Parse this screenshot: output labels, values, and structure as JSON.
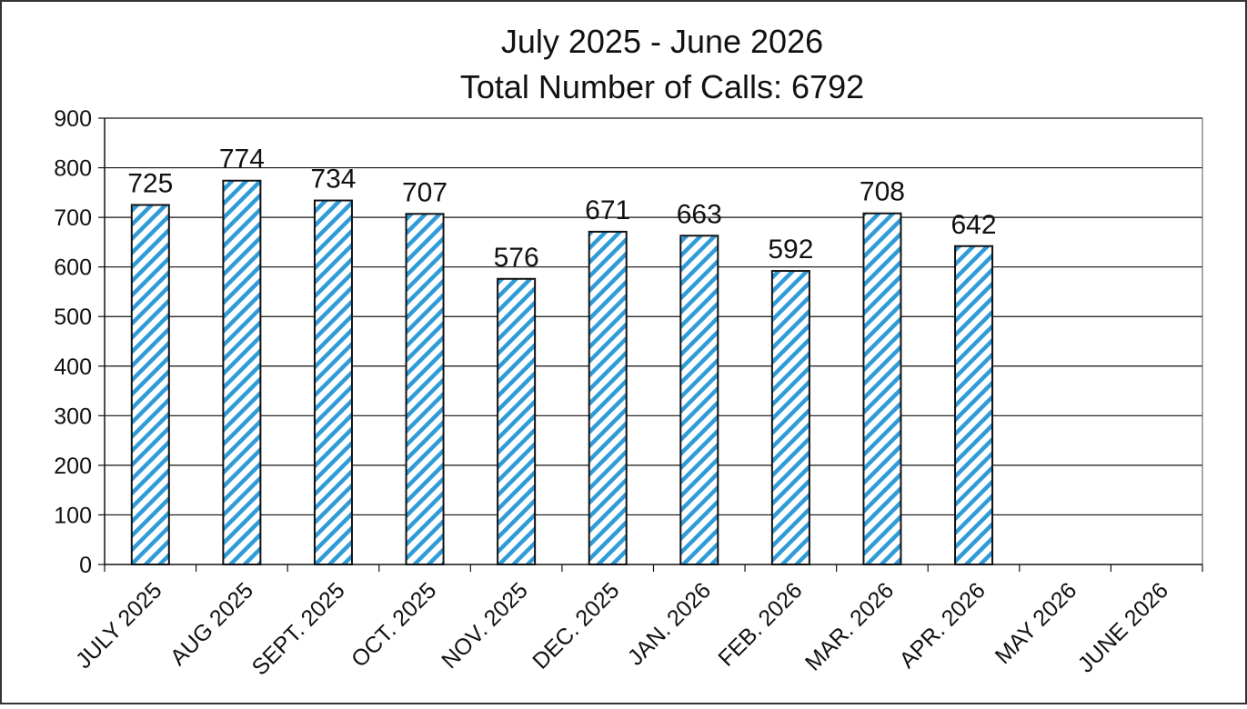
{
  "chart_data": {
    "type": "bar",
    "title": "July 2025 - June 2026",
    "subtitle": "Total Number of Calls: 6792",
    "xlabel": "",
    "ylabel": "",
    "ylim": [
      0,
      900
    ],
    "y_ticks": [
      0,
      100,
      200,
      300,
      400,
      500,
      600,
      700,
      800,
      900
    ],
    "grid": true,
    "legend": "none",
    "bar_fill": "diagonal-hatch",
    "colors": {
      "bar_hatch": "#2f9bd8",
      "bar_outline": "#111111",
      "grid": "#111111"
    },
    "categories": [
      "JULY 2025",
      "AUG 2025",
      "SEPT. 2025",
      "OCT. 2025",
      "NOV. 2025",
      "DEC. 2025",
      "JAN. 2026",
      "FEB. 2026",
      "MAR. 2026",
      "APR. 2026",
      "MAY 2026",
      "JUNE 2026"
    ],
    "values": [
      725,
      774,
      734,
      707,
      576,
      671,
      663,
      592,
      708,
      642,
      null,
      null
    ],
    "data_labels": [
      "725",
      "774",
      "734",
      "707",
      "576",
      "671",
      "663",
      "592",
      "708",
      "642",
      "",
      ""
    ]
  }
}
